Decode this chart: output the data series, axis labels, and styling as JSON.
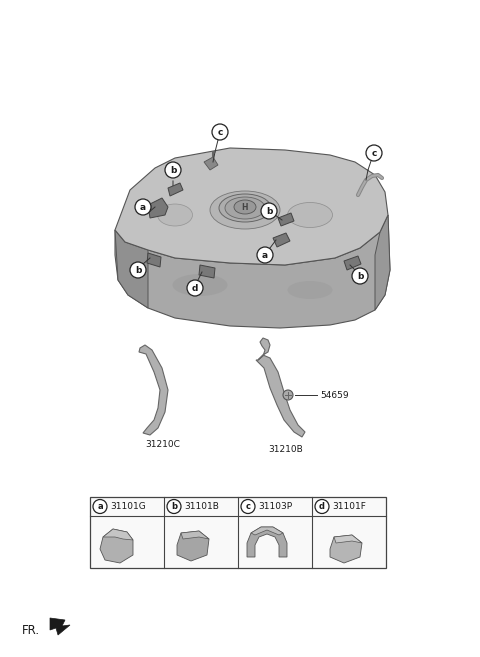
{
  "bg_color": "#ffffff",
  "fr_label": "FR.",
  "parts_table": {
    "headers": [
      "a",
      "b",
      "c",
      "d"
    ],
    "part_numbers": [
      "31101G",
      "31101B",
      "31103P",
      "31101F"
    ]
  },
  "callout_labels": {
    "band_left": "31210C",
    "band_right": "31210B",
    "bolt": "54659"
  },
  "label_color": "#1a1a1a",
  "line_color": "#333333",
  "circle_color": "#ffffff",
  "circle_edge": "#222222",
  "table_line_color": "#444444",
  "tank": {
    "top_color": "#c8c8c8",
    "side_color": "#a0a0a0",
    "shadow_color": "#888888",
    "edge_color": "#555555"
  },
  "strap_color": "#b0b0b0",
  "strap_edge": "#666666",
  "part_icon_color": "#aaaaaa",
  "part_icon_edge": "#555555"
}
